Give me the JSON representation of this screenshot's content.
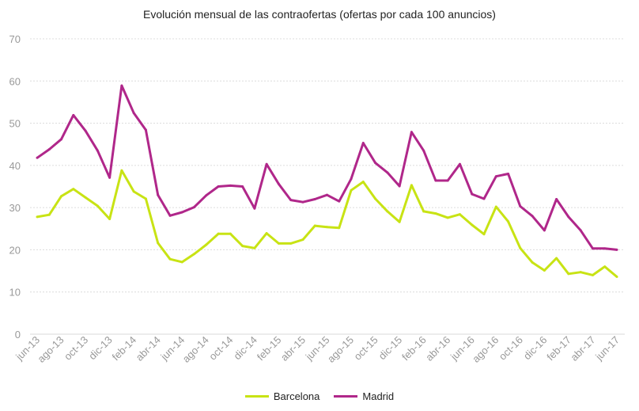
{
  "chart_data": {
    "type": "line",
    "title": "Evolución  mensual de las contraofertas (ofertas por cada 100 anuncios)",
    "xlabel": "",
    "ylabel": "",
    "ylim": [
      0,
      70
    ],
    "yticks": [
      0,
      10,
      20,
      30,
      40,
      50,
      60,
      70
    ],
    "grid": true,
    "legend": "bottom",
    "x": [
      "jun-13",
      "jul-13",
      "ago-13",
      "sep-13",
      "oct-13",
      "nov-13",
      "dic-13",
      "ene-14",
      "feb-14",
      "mar-14",
      "abr-14",
      "may-14",
      "jun-14",
      "jul-14",
      "ago-14",
      "sep-14",
      "oct-14",
      "nov-14",
      "dic-14",
      "ene-15",
      "feb-15",
      "mar-15",
      "abr-15",
      "may-15",
      "jun-15",
      "jul-15",
      "ago-15",
      "sep-15",
      "oct-15",
      "nov-15",
      "dic-15",
      "ene-16",
      "feb-16",
      "mar-16",
      "abr-16",
      "may-16",
      "jun-16",
      "jul-16",
      "ago-16",
      "sep-16",
      "oct-16",
      "nov-16",
      "dic-16",
      "ene-17",
      "feb-17",
      "mar-17",
      "abr-17",
      "may-17",
      "jun-17"
    ],
    "xtick_labels": [
      "jun-13",
      "ago-13",
      "oct-13",
      "dic-13",
      "feb-14",
      "abr-14",
      "jun-14",
      "ago-14",
      "oct-14",
      "dic-14",
      "feb-15",
      "abr-15",
      "jun-15",
      "ago-15",
      "oct-15",
      "dic-15",
      "feb-16",
      "abr-16",
      "jun-16",
      "ago-16",
      "oct-16",
      "dic-16",
      "feb-17",
      "abr-17",
      "jun-17"
    ],
    "series": [
      {
        "name": "Barcelona",
        "color": "#c8e314",
        "values": [
          27.8,
          28.3,
          32.7,
          34.4,
          32.4,
          30.4,
          27.3,
          38.8,
          33.8,
          32.1,
          21.6,
          17.8,
          17.1,
          19.0,
          21.2,
          23.8,
          23.8,
          20.9,
          20.4,
          23.9,
          21.5,
          21.5,
          22.4,
          25.7,
          25.4,
          25.2,
          34.1,
          36.1,
          32.1,
          29.1,
          26.6,
          35.3,
          29.1,
          28.6,
          27.6,
          28.4,
          25.9,
          23.7,
          30.2,
          26.7,
          20.4,
          17.0,
          15.1,
          18.0,
          14.3,
          14.7,
          14.0,
          16.0,
          13.6
        ]
      },
      {
        "name": "Madrid",
        "color": "#b0278a",
        "values": [
          41.8,
          43.8,
          46.2,
          51.9,
          48.2,
          43.5,
          37.1,
          58.9,
          52.4,
          48.4,
          33.0,
          28.1,
          28.9,
          30.1,
          32.9,
          35.0,
          35.2,
          35.0,
          29.8,
          40.3,
          35.6,
          31.8,
          31.3,
          32.0,
          33.0,
          31.5,
          36.8,
          45.3,
          40.6,
          38.3,
          35.1,
          47.9,
          43.5,
          36.4,
          36.4,
          40.3,
          33.2,
          32.1,
          37.4,
          38.0,
          30.3,
          28.0,
          24.6,
          32.0,
          27.8,
          24.6,
          20.3,
          20.3,
          20.0
        ]
      }
    ]
  }
}
